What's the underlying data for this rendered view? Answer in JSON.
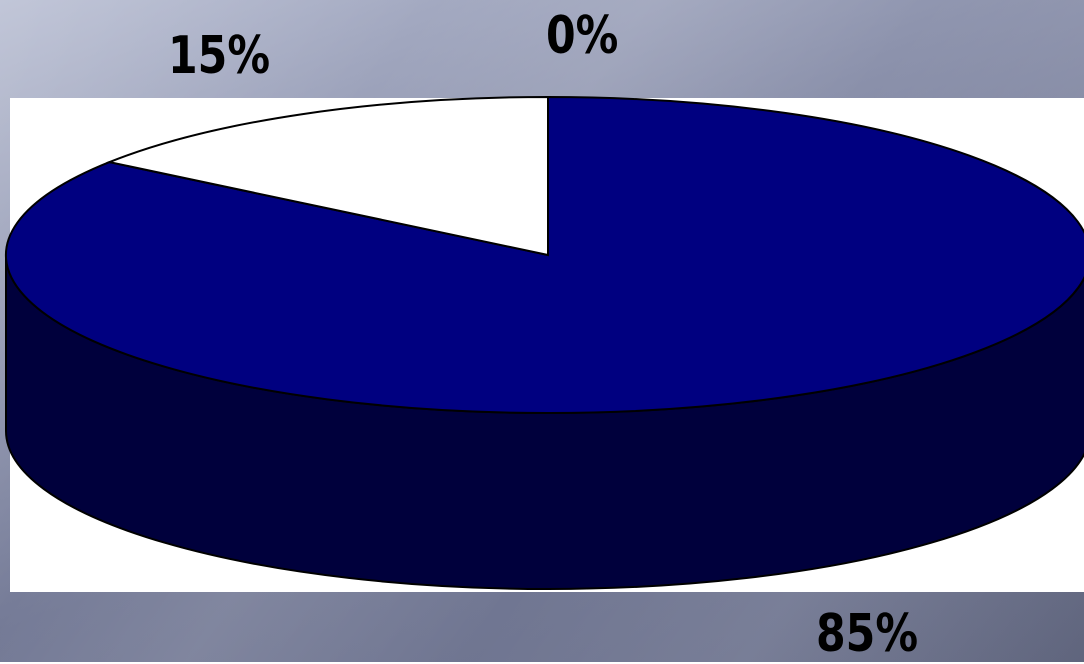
{
  "chart_data": {
    "type": "pie",
    "style": "3d",
    "slices": [
      {
        "label": "15%",
        "value": 15,
        "color": "#ffffff"
      },
      {
        "label": "0%",
        "value": 0,
        "color": "#ffffff"
      },
      {
        "label": "85%",
        "value": 85,
        "color": "#000080"
      }
    ],
    "colors": {
      "top_face": "#000080",
      "side_face": "#00003c",
      "outline": "#000000",
      "panel": "#ffffff"
    }
  }
}
